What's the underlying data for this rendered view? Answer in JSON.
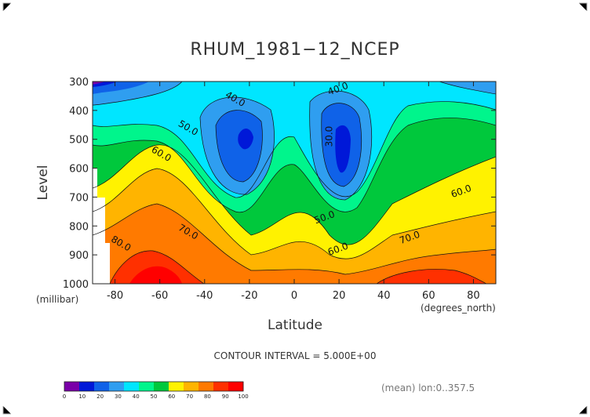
{
  "chart_data": {
    "type": "contour",
    "title": "RHUM_1981−12_NCEP",
    "xlabel": "Latitude",
    "ylabel": "Level",
    "x_unit": "(degrees_north)",
    "y_unit": "(millibar)",
    "xlim": [
      -90,
      90
    ],
    "ylim": [
      1000,
      300
    ],
    "x_ticks": [
      -80,
      -60,
      -40,
      -20,
      0,
      20,
      40,
      60,
      80
    ],
    "y_ticks": [
      300,
      400,
      500,
      600,
      700,
      800,
      900,
      1000
    ],
    "contour_interval_text": "CONTOUR INTERVAL = 5.000E+00",
    "subtitle_right": "(mean) lon:0..357.5",
    "colorbar": {
      "ticks": [
        0,
        10,
        20,
        30,
        40,
        50,
        60,
        70,
        80,
        90,
        100
      ],
      "colors": [
        "#7a00a8",
        "#0018d8",
        "#0f62e8",
        "#2f9ef0",
        "#00e6ff",
        "#00f58c",
        "#00c83c",
        "#fff200",
        "#ffb400",
        "#ff7a00",
        "#ff3000",
        "#ff0000"
      ]
    },
    "contour_labels": [
      {
        "text": "40.0",
        "lat": -27,
        "lev": 370
      },
      {
        "text": "40.0",
        "lat": 20,
        "lev": 335
      },
      {
        "text": "30.0",
        "lat": 17,
        "lev": 490
      },
      {
        "text": "50.0",
        "lat": -48,
        "lev": 470
      },
      {
        "text": "60.0",
        "lat": -60,
        "lev": 560
      },
      {
        "text": "70.0",
        "lat": -48,
        "lev": 830
      },
      {
        "text": "80.0",
        "lat": -78,
        "lev": 870
      },
      {
        "text": "50.0",
        "lat": 14,
        "lev": 780
      },
      {
        "text": "60.0",
        "lat": 20,
        "lev": 890
      },
      {
        "text": "70.0",
        "lat": 52,
        "lev": 850
      },
      {
        "text": "60.0",
        "lat": 75,
        "lev": 690
      }
    ],
    "sample_profiles": [
      {
        "lat": -80,
        "rh_300": 15,
        "rh_500": 45,
        "rh_700": 65,
        "rh_1000": 80
      },
      {
        "lat": -25,
        "rh_300": 35,
        "rh_500": 25,
        "rh_700": 40,
        "rh_1000": 70
      },
      {
        "lat": 0,
        "rh_300": 45,
        "rh_500": 42,
        "rh_700": 60,
        "rh_1000": 80
      },
      {
        "lat": 22,
        "rh_300": 42,
        "rh_500": 28,
        "rh_700": 38,
        "rh_1000": 72
      },
      {
        "lat": 60,
        "rh_300": 40,
        "rh_500": 55,
        "rh_700": 65,
        "rh_1000": 80
      }
    ]
  }
}
